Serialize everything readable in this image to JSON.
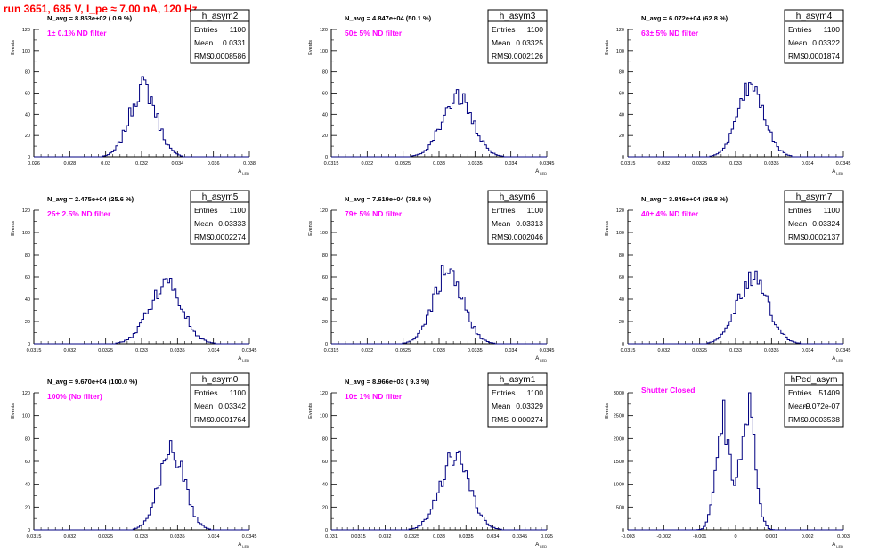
{
  "page": {
    "title": "run 3651,   685 V, I_pe ≈ 7.00 nA, 120 Hz",
    "colors": {
      "title": "#ff0000",
      "histogram": "#000080",
      "annotation": "#ff00ff",
      "axis": "#000000"
    }
  },
  "chart_data": [
    {
      "type": "histogram",
      "name": "h_asym2",
      "stats": {
        "entries": "1100",
        "mean": "0.0331",
        "rms": "0.0008586"
      },
      "navg": "N_avg = 8.853e+02 ( 0.9 %)",
      "filter": "1± 0.1% ND filter",
      "xlim": [
        0.026,
        0.04
      ],
      "ylim": [
        0,
        120
      ],
      "xticks": [
        "0.026",
        "0.028",
        "0.03",
        "0.032",
        "0.034",
        "0.036",
        "0.038"
      ],
      "yticks": [
        "0",
        "20",
        "40",
        "60",
        "80",
        "100",
        "120"
      ],
      "xlabel": "A_LED",
      "ylabel": "Events",
      "center": 0.0331,
      "width": 0.0008586,
      "peak": 80
    },
    {
      "type": "histogram",
      "name": "h_asym3",
      "stats": {
        "entries": "1100",
        "mean": "0.03325",
        "rms": "0.0002126"
      },
      "navg": "N_avg = 4.847e+04 (50.1 %)",
      "filter": "50± 5% ND filter",
      "xlim": [
        0.0315,
        0.0345
      ],
      "ylim": [
        0,
        120
      ],
      "xticks": [
        "0.0315",
        "0.032",
        "0.0325",
        "0.033",
        "0.0335",
        "0.034",
        "0.0345"
      ],
      "yticks": [
        "0",
        "20",
        "40",
        "60",
        "80",
        "100",
        "120"
      ],
      "xlabel": "A_LED",
      "ylabel": "Events",
      "center": 0.03325,
      "width": 0.0002126,
      "peak": 68
    },
    {
      "type": "histogram",
      "name": "h_asym4",
      "stats": {
        "entries": "1100",
        "mean": "0.03322",
        "rms": "0.0001874"
      },
      "navg": "N_avg = 6.072e+04 (62.8 %)",
      "filter": "63± 5% ND filter",
      "xlim": [
        0.0315,
        0.0345
      ],
      "ylim": [
        0,
        120
      ],
      "xticks": [
        "0.0315",
        "0.032",
        "0.0325",
        "0.033",
        "0.0335",
        "0.034",
        "0.0345"
      ],
      "yticks": [
        "0",
        "20",
        "40",
        "60",
        "80",
        "100",
        "120"
      ],
      "xlabel": "A_LED",
      "ylabel": "Events",
      "center": 0.03322,
      "width": 0.0001874,
      "peak": 80
    },
    {
      "type": "histogram",
      "name": "h_asym5",
      "stats": {
        "entries": "1100",
        "mean": "0.03333",
        "rms": "0.0002274"
      },
      "navg": "N_avg = 2.475e+04 (25.6 %)",
      "filter": "25± 2.5% ND filter",
      "xlim": [
        0.0315,
        0.0345
      ],
      "ylim": [
        0,
        120
      ],
      "xticks": [
        "0.0315",
        "0.032",
        "0.0325",
        "0.033",
        "0.0335",
        "0.034",
        "0.0345"
      ],
      "yticks": [
        "0",
        "20",
        "40",
        "60",
        "80",
        "100",
        "120"
      ],
      "xlabel": "A_LED",
      "ylabel": "Events",
      "center": 0.03333,
      "width": 0.0002274,
      "peak": 66
    },
    {
      "type": "histogram",
      "name": "h_asym6",
      "stats": {
        "entries": "1100",
        "mean": "0.03313",
        "rms": "0.0002046"
      },
      "navg": "N_avg = 7.619e+04 (78.8 %)",
      "filter": "79± 5% ND filter",
      "xlim": [
        0.0315,
        0.0345
      ],
      "ylim": [
        0,
        120
      ],
      "xticks": [
        "0.0315",
        "0.032",
        "0.0325",
        "0.033",
        "0.0335",
        "0.034",
        "0.0345"
      ],
      "yticks": [
        "0",
        "20",
        "40",
        "60",
        "80",
        "100",
        "120"
      ],
      "xlabel": "A_LED",
      "ylabel": "Events",
      "center": 0.03313,
      "width": 0.0002046,
      "peak": 80
    },
    {
      "type": "histogram",
      "name": "h_asym7",
      "stats": {
        "entries": "1100",
        "mean": "0.03324",
        "rms": "0.0002137"
      },
      "navg": "N_avg = 3.846e+04 (39.8 %)",
      "filter": "40± 4% ND filter",
      "xlim": [
        0.0315,
        0.0345
      ],
      "ylim": [
        0,
        120
      ],
      "xticks": [
        "0.0315",
        "0.032",
        "0.0325",
        "0.033",
        "0.0335",
        "0.034",
        "0.0345"
      ],
      "yticks": [
        "0",
        "20",
        "40",
        "60",
        "80",
        "100",
        "120"
      ],
      "xlabel": "A_LED",
      "ylabel": "Events",
      "center": 0.03324,
      "width": 0.0002137,
      "peak": 72
    },
    {
      "type": "histogram",
      "name": "h_asym0",
      "stats": {
        "entries": "1100",
        "mean": "0.03342",
        "rms": "0.0001764"
      },
      "navg": "N_avg = 9.670e+04 (100.0 %)",
      "filter": "100% (No filter)",
      "xlim": [
        0.0315,
        0.0345
      ],
      "ylim": [
        0,
        120
      ],
      "xticks": [
        "0.0315",
        "0.032",
        "0.0325",
        "0.033",
        "0.0335",
        "0.034",
        "0.0345"
      ],
      "yticks": [
        "0",
        "20",
        "40",
        "60",
        "80",
        "100",
        "120"
      ],
      "xlabel": "A_LED",
      "ylabel": "Events",
      "center": 0.03342,
      "width": 0.0001764,
      "peak": 85
    },
    {
      "type": "histogram",
      "name": "h_asym1",
      "stats": {
        "entries": "1100",
        "mean": "0.03329",
        "rms": "0.000274"
      },
      "navg": "N_avg = 8.966e+03 ( 9.3 %)",
      "filter": "10± 1% ND filter",
      "xlim": [
        0.031,
        0.035
      ],
      "ylim": [
        0,
        120
      ],
      "xticks": [
        "0.031",
        "0.0315",
        "0.032",
        "0.0325",
        "0.033",
        "0.0335",
        "0.034",
        "0.0345",
        "0.035"
      ],
      "yticks": [
        "0",
        "20",
        "40",
        "60",
        "80",
        "100",
        "120"
      ],
      "xlabel": "A_LED",
      "ylabel": "Events",
      "center": 0.03329,
      "width": 0.000274,
      "peak": 80
    },
    {
      "type": "histogram",
      "name": "hPed_asym",
      "stats": {
        "entries": "51409",
        "mean": "-9.072e-07",
        "rms": "0.0003538"
      },
      "navg": "",
      "filter": "Shutter Closed",
      "xlim": [
        -0.003,
        0.003
      ],
      "ylim": [
        0,
        3500
      ],
      "xticks": [
        "-0.003",
        "-0.002",
        "-0.001",
        "0",
        "0.001",
        "0.002",
        "0.003"
      ],
      "yticks": [
        "0",
        "500",
        "1000",
        "1500",
        "2000",
        "2500",
        "3000"
      ],
      "xlabel": "A_LED",
      "ylabel": "Events",
      "center": -9.072e-07,
      "width": 0.0003538,
      "peak": 3250,
      "bimodal": true
    }
  ]
}
